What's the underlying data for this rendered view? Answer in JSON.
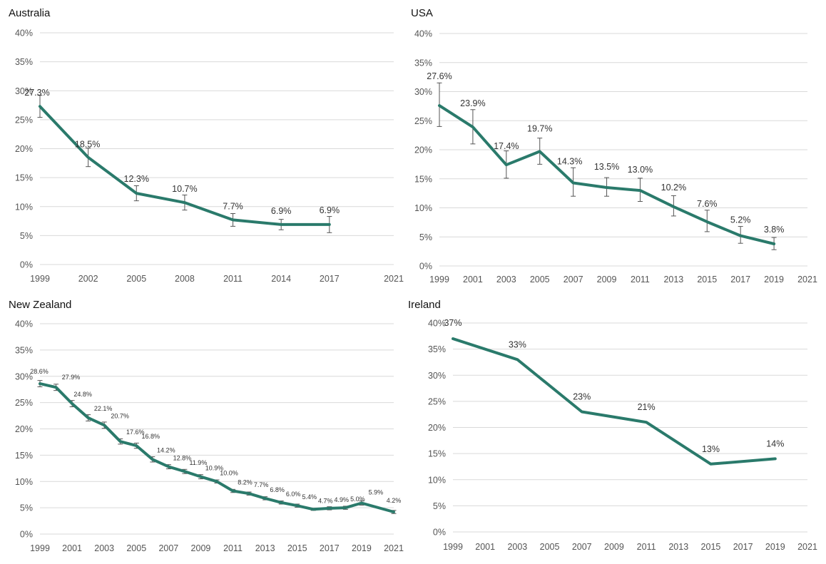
{
  "colors": {
    "line": "#2a7a6b",
    "grid": "#d9d9d9",
    "text": "#333333"
  },
  "chart_data": [
    {
      "type": "line",
      "title": "Australia",
      "ylim": [
        0,
        40
      ],
      "y_ticks": [
        "0%",
        "5%",
        "10%",
        "15%",
        "20%",
        "25%",
        "30%",
        "35%",
        "40%"
      ],
      "x_ticks": [
        1999,
        2002,
        2005,
        2008,
        2011,
        2014,
        2017,
        2021
      ],
      "xlim": [
        1999,
        2021
      ],
      "grid": true,
      "series": [
        {
          "x": [
            1999,
            2002,
            2005,
            2008,
            2011,
            2014,
            2017
          ],
          "values": [
            27.3,
            18.5,
            12.3,
            10.7,
            7.7,
            6.9,
            6.9
          ],
          "labels": [
            "27.3%",
            "18.5%",
            "12.3%",
            "10.7%",
            "7.7%",
            "6.9%",
            "6.9%"
          ],
          "error_low": [
            25.4,
            16.9,
            11.0,
            9.4,
            6.6,
            6.0,
            5.5
          ],
          "error_high": [
            29.2,
            20.1,
            13.6,
            12.0,
            8.8,
            7.8,
            8.3
          ]
        }
      ]
    },
    {
      "type": "line",
      "title": "USA",
      "ylim": [
        0,
        40
      ],
      "y_ticks": [
        "0%",
        "5%",
        "10%",
        "15%",
        "20%",
        "25%",
        "30%",
        "35%",
        "40%"
      ],
      "x_ticks": [
        1999,
        2001,
        2003,
        2005,
        2007,
        2009,
        2011,
        2013,
        2015,
        2017,
        2019,
        2021
      ],
      "xlim": [
        1999,
        2021
      ],
      "grid": true,
      "series": [
        {
          "x": [
            1999,
            2001,
            2003,
            2005,
            2007,
            2009,
            2011,
            2013,
            2015,
            2017,
            2019
          ],
          "values": [
            27.6,
            23.9,
            17.4,
            19.7,
            14.3,
            13.5,
            13.0,
            10.2,
            7.6,
            5.2,
            3.8
          ],
          "labels": [
            "27.6%",
            "23.9%",
            "17.4%",
            "19.7%",
            "14.3%",
            "13.5%",
            "13.0%",
            "10.2%",
            "7.6%",
            "5.2%",
            "3.8%"
          ],
          "error_low": [
            24.0,
            21.0,
            15.1,
            17.5,
            12.0,
            12.0,
            11.1,
            8.6,
            5.9,
            3.9,
            2.8
          ],
          "error_high": [
            31.5,
            26.9,
            19.8,
            22.0,
            16.9,
            15.2,
            15.1,
            12.1,
            9.6,
            6.8,
            4.9
          ]
        }
      ]
    },
    {
      "type": "line",
      "title": "New Zealand",
      "ylim": [
        0,
        40
      ],
      "y_ticks": [
        "0%",
        "5%",
        "10%",
        "15%",
        "20%",
        "25%",
        "30%",
        "35%",
        "40%"
      ],
      "x_ticks": [
        1999,
        2001,
        2003,
        2005,
        2007,
        2009,
        2011,
        2013,
        2015,
        2017,
        2019,
        2021
      ],
      "xlim": [
        1999,
        2021
      ],
      "grid": true,
      "series": [
        {
          "x": [
            1999,
            2000,
            2001,
            2002,
            2003,
            2004,
            2005,
            2006,
            2007,
            2008,
            2009,
            2010,
            2011,
            2012,
            2013,
            2014,
            2015,
            2016,
            2017,
            2018,
            2019,
            2021
          ],
          "values": [
            28.6,
            27.9,
            24.8,
            22.1,
            20.7,
            17.6,
            16.8,
            14.2,
            12.8,
            11.9,
            10.9,
            10.0,
            8.2,
            7.7,
            6.8,
            6.0,
            5.4,
            4.7,
            4.9,
            5.0,
            5.9,
            4.2
          ],
          "labels": [
            "28.6%",
            "27.9%",
            "24.8%",
            "22.1%",
            "20.7%",
            "17.6%",
            "16.8%",
            "14.2%",
            "12.8%",
            "11.9%",
            "10.9%",
            "10.0%",
            "8.2%",
            "7.7%",
            "6.8%",
            "6.0%",
            "5.4%",
            "4.7%",
            "4.9%",
            "5.0%",
            "5.9%",
            "4.2%"
          ],
          "error_low": [
            28.0,
            27.3,
            24.2,
            21.5,
            20.1,
            17.1,
            16.3,
            13.7,
            12.4,
            11.5,
            10.5,
            9.7,
            7.9,
            7.4,
            6.5,
            5.7,
            5.1,
            4.5,
            4.6,
            4.7,
            5.5,
            3.9
          ],
          "error_high": [
            29.2,
            28.5,
            25.4,
            22.7,
            21.3,
            18.1,
            17.3,
            14.7,
            13.2,
            12.3,
            11.3,
            10.3,
            8.5,
            8.0,
            7.1,
            6.3,
            5.7,
            4.9,
            5.2,
            5.3,
            6.3,
            4.5
          ]
        }
      ]
    },
    {
      "type": "line",
      "title": "Ireland",
      "ylim": [
        0,
        40
      ],
      "y_ticks": [
        "0%",
        "5%",
        "10%",
        "15%",
        "20%",
        "25%",
        "30%",
        "35%",
        "40%"
      ],
      "x_ticks": [
        1999,
        2001,
        2003,
        2005,
        2007,
        2009,
        2011,
        2013,
        2015,
        2017,
        2019,
        2021
      ],
      "xlim": [
        1999,
        2021
      ],
      "grid": true,
      "series": [
        {
          "x": [
            1999,
            2003,
            2007,
            2011,
            2015,
            2019
          ],
          "values": [
            37,
            33,
            23,
            21,
            13,
            14
          ],
          "labels": [
            "37%",
            "33%",
            "23%",
            "21%",
            "13%",
            "14%"
          ]
        }
      ]
    }
  ]
}
